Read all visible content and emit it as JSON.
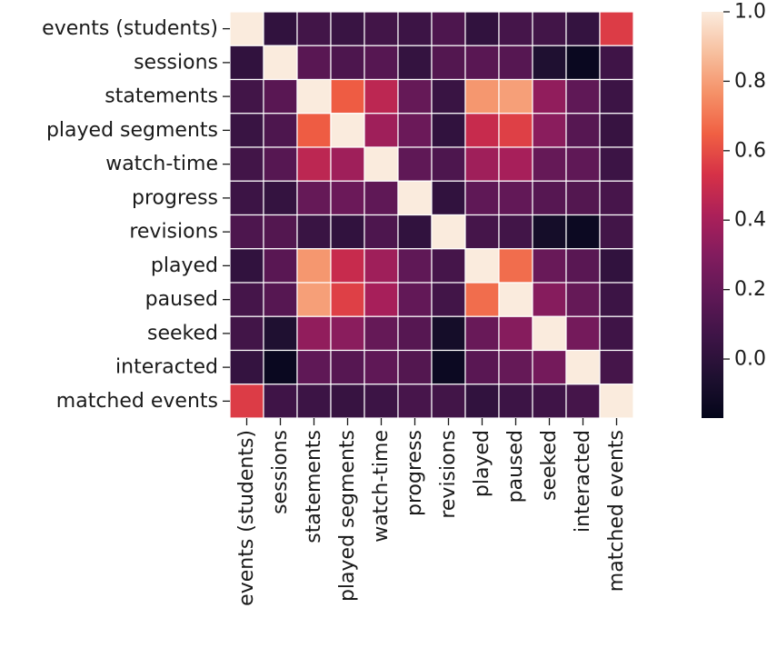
{
  "chart_data": {
    "type": "heatmap",
    "title": "",
    "xlabel": "",
    "ylabel": "",
    "labels": [
      "events (students)",
      "sessions",
      "statements",
      "played segments",
      "watch-time",
      "progress",
      "revisions",
      "played",
      "paused",
      "seeked",
      "interacted",
      "matched events"
    ],
    "matrix": [
      [
        1.0,
        0.02,
        0.08,
        0.05,
        0.08,
        0.06,
        0.12,
        0.02,
        0.09,
        0.08,
        0.03,
        0.56
      ],
      [
        0.02,
        1.0,
        0.16,
        0.12,
        0.15,
        0.03,
        0.14,
        0.16,
        0.15,
        -0.05,
        -0.14,
        0.07
      ],
      [
        0.08,
        0.16,
        1.0,
        0.64,
        0.46,
        0.2,
        0.05,
        0.78,
        0.8,
        0.34,
        0.18,
        0.06
      ],
      [
        0.05,
        0.12,
        0.64,
        1.0,
        0.38,
        0.22,
        0.02,
        0.49,
        0.57,
        0.32,
        0.15,
        0.04
      ],
      [
        0.08,
        0.15,
        0.46,
        0.38,
        1.0,
        0.18,
        0.12,
        0.38,
        0.4,
        0.2,
        0.18,
        0.06
      ],
      [
        0.06,
        0.03,
        0.2,
        0.22,
        0.18,
        1.0,
        0.02,
        0.18,
        0.19,
        0.15,
        0.14,
        0.1
      ],
      [
        0.12,
        0.14,
        0.05,
        0.02,
        0.12,
        0.02,
        1.0,
        0.09,
        0.08,
        -0.09,
        -0.13,
        0.08
      ],
      [
        0.02,
        0.16,
        0.78,
        0.49,
        0.38,
        0.18,
        0.09,
        1.0,
        0.68,
        0.21,
        0.16,
        0.02
      ],
      [
        0.09,
        0.15,
        0.8,
        0.57,
        0.4,
        0.19,
        0.08,
        0.68,
        1.0,
        0.31,
        0.2,
        0.06
      ],
      [
        0.08,
        -0.05,
        0.34,
        0.32,
        0.2,
        0.15,
        -0.09,
        0.21,
        0.31,
        1.0,
        0.25,
        0.07
      ],
      [
        0.03,
        -0.14,
        0.18,
        0.15,
        0.18,
        0.14,
        -0.13,
        0.16,
        0.2,
        0.25,
        1.0,
        0.09
      ],
      [
        0.56,
        0.07,
        0.06,
        0.04,
        0.06,
        0.1,
        0.08,
        0.02,
        0.06,
        0.07,
        0.09,
        1.0
      ]
    ],
    "vmin": -0.17,
    "vmax": 1.0,
    "colormap": "rocket",
    "colorbar": {
      "ticks": [
        0.0,
        0.2,
        0.4,
        0.6,
        0.8,
        1.0
      ],
      "tick_labels": [
        "0.0",
        "0.2",
        "0.4",
        "0.6",
        "0.8",
        "1.0"
      ]
    },
    "legend": "colorbar-right"
  }
}
